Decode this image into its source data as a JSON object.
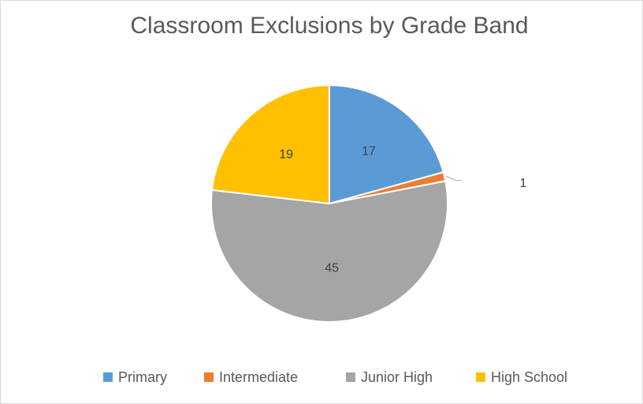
{
  "chart_data": {
    "type": "pie",
    "title": "Classroom Exclusions by Grade Band",
    "categories": [
      "Primary",
      "Intermediate",
      "Junior High",
      "High School"
    ],
    "values": [
      17,
      1,
      45,
      19
    ],
    "colors": [
      "#5b9bd5",
      "#ed7d31",
      "#a5a5a5",
      "#ffc000"
    ],
    "legend": "bottom"
  }
}
